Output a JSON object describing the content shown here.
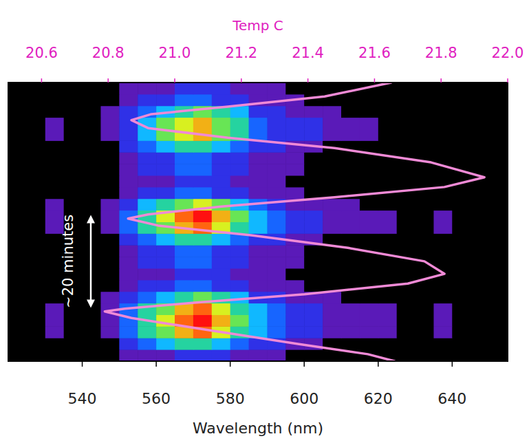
{
  "chart_data": {
    "type": "heatmap",
    "x_label": "Wavelength (nm)",
    "x2_label": "Temp C",
    "xlim": [
      520,
      655
    ],
    "xticks": [
      540,
      560,
      580,
      600,
      620,
      640
    ],
    "x2lim": [
      20.5,
      22.0
    ],
    "x2ticks": [
      20.6,
      20.8,
      {
        "value": 21,
        "label": "21.0"
      },
      21.2,
      21.4,
      21.6,
      21.8,
      {
        "value": 22,
        "label": "22.0"
      }
    ],
    "ylim": [
      0,
      60
    ],
    "tick_labels": "x",
    "grid": false,
    "x_bins": [
      520,
      525,
      530,
      535,
      540,
      545,
      550,
      555,
      560,
      565,
      570,
      575,
      580,
      585,
      590,
      595,
      600,
      605,
      610,
      615,
      620,
      625,
      630,
      635,
      640,
      645,
      650,
      655
    ],
    "y_bins": [
      0,
      2.5,
      5,
      7.5,
      10,
      12.5,
      15,
      17.5,
      20,
      22.5,
      25,
      27.5,
      30,
      32.5,
      35,
      37.5,
      40,
      42.5,
      45,
      47.5,
      50,
      52.5,
      55,
      57.5,
      60
    ],
    "color_range": [
      0,
      10
    ],
    "cells": [
      [
        0,
        0,
        0,
        0,
        0,
        0,
        1,
        1,
        1,
        2,
        2,
        2,
        1,
        1,
        1,
        0,
        0,
        0,
        0,
        0,
        0,
        0,
        0,
        0,
        0,
        0,
        0
      ],
      [
        0,
        0,
        0,
        0,
        0,
        0,
        2,
        3,
        4,
        5,
        5,
        4,
        3,
        2,
        2,
        1,
        1,
        0,
        0,
        0,
        0,
        0,
        0,
        0,
        0,
        0,
        0
      ],
      [
        0,
        0,
        1,
        0,
        0,
        1,
        3,
        5,
        6,
        8,
        9,
        7,
        5,
        4,
        3,
        2,
        2,
        1,
        1,
        1,
        1,
        0,
        0,
        1,
        0,
        0,
        0
      ],
      [
        0,
        0,
        1,
        0,
        0,
        1,
        3,
        5,
        7,
        9,
        10,
        8,
        6,
        4,
        3,
        2,
        2,
        1,
        1,
        1,
        1,
        0,
        0,
        1,
        0,
        0,
        0
      ],
      [
        0,
        0,
        1,
        0,
        0,
        1,
        3,
        5,
        6,
        8,
        9,
        7,
        5,
        4,
        3,
        2,
        2,
        1,
        1,
        1,
        1,
        0,
        0,
        1,
        0,
        0,
        0
      ],
      [
        0,
        0,
        0,
        0,
        0,
        1,
        2,
        3,
        4,
        5,
        6,
        5,
        4,
        2,
        2,
        1,
        1,
        1,
        0,
        0,
        0,
        0,
        0,
        0,
        0,
        0,
        0
      ],
      [
        0,
        0,
        0,
        0,
        0,
        0,
        1,
        2,
        2,
        3,
        3,
        2,
        2,
        1,
        1,
        1,
        0,
        0,
        0,
        0,
        0,
        0,
        0,
        0,
        0,
        0,
        0
      ],
      [
        0,
        0,
        0,
        0,
        0,
        0,
        1,
        1,
        1,
        2,
        2,
        2,
        1,
        1,
        1,
        0,
        0,
        0,
        0,
        0,
        0,
        0,
        0,
        0,
        0,
        0,
        0
      ],
      [
        0,
        0,
        0,
        0,
        0,
        0,
        1,
        2,
        2,
        3,
        3,
        2,
        2,
        1,
        1,
        1,
        0,
        0,
        0,
        0,
        0,
        0,
        0,
        0,
        0,
        0,
        0
      ],
      [
        0,
        0,
        0,
        0,
        0,
        0,
        1,
        2,
        2,
        3,
        3,
        2,
        2,
        1,
        1,
        1,
        0,
        0,
        0,
        0,
        0,
        0,
        0,
        0,
        0,
        0,
        0
      ],
      [
        0,
        0,
        0,
        0,
        0,
        0,
        2,
        3,
        4,
        5,
        5,
        4,
        3,
        2,
        2,
        1,
        1,
        0,
        0,
        0,
        0,
        0,
        0,
        0,
        0,
        0,
        0
      ],
      [
        0,
        0,
        1,
        0,
        0,
        1,
        3,
        5,
        6,
        8,
        9,
        7,
        5,
        4,
        3,
        2,
        2,
        1,
        1,
        1,
        1,
        0,
        0,
        1,
        0,
        0,
        0
      ],
      [
        0,
        0,
        1,
        0,
        0,
        1,
        3,
        5,
        7,
        9,
        10,
        8,
        6,
        4,
        3,
        2,
        2,
        1,
        1,
        1,
        1,
        0,
        0,
        1,
        0,
        0,
        0
      ],
      [
        0,
        0,
        1,
        0,
        0,
        1,
        2,
        4,
        5,
        6,
        7,
        6,
        4,
        3,
        2,
        1,
        1,
        1,
        1,
        0,
        0,
        0,
        0,
        0,
        0,
        0,
        0
      ],
      [
        0,
        0,
        0,
        0,
        0,
        0,
        1,
        2,
        2,
        3,
        3,
        2,
        2,
        1,
        1,
        1,
        0,
        0,
        0,
        0,
        0,
        0,
        0,
        0,
        0,
        0,
        0
      ],
      [
        0,
        0,
        0,
        0,
        0,
        0,
        1,
        1,
        1,
        2,
        2,
        2,
        1,
        1,
        1,
        0,
        0,
        0,
        0,
        0,
        0,
        0,
        0,
        0,
        0,
        0,
        0
      ],
      [
        0,
        0,
        0,
        0,
        0,
        0,
        1,
        2,
        2,
        3,
        3,
        2,
        2,
        1,
        1,
        1,
        0,
        0,
        0,
        0,
        0,
        0,
        0,
        0,
        0,
        0,
        0
      ],
      [
        0,
        0,
        0,
        0,
        0,
        0,
        1,
        2,
        2,
        3,
        3,
        2,
        2,
        1,
        1,
        1,
        0,
        0,
        0,
        0,
        0,
        0,
        0,
        0,
        0,
        0,
        0
      ],
      [
        0,
        0,
        0,
        0,
        0,
        0,
        2,
        3,
        4,
        5,
        5,
        4,
        3,
        2,
        2,
        1,
        1,
        0,
        0,
        0,
        0,
        0,
        0,
        0,
        0,
        0,
        0
      ],
      [
        0,
        0,
        1,
        0,
        0,
        1,
        2,
        4,
        6,
        7,
        8,
        6,
        5,
        3,
        2,
        2,
        2,
        1,
        1,
        1,
        0,
        0,
        0,
        0,
        0,
        0,
        0
      ],
      [
        0,
        0,
        1,
        0,
        0,
        1,
        2,
        4,
        6,
        7,
        8,
        6,
        5,
        3,
        2,
        2,
        2,
        1,
        1,
        1,
        0,
        0,
        0,
        0,
        0,
        0,
        0
      ],
      [
        0,
        0,
        0,
        0,
        0,
        1,
        2,
        3,
        4,
        5,
        6,
        5,
        4,
        2,
        2,
        1,
        1,
        1,
        0,
        0,
        0,
        0,
        0,
        0,
        0,
        0,
        0
      ],
      [
        0,
        0,
        0,
        0,
        0,
        0,
        1,
        2,
        2,
        3,
        3,
        2,
        2,
        1,
        1,
        1,
        0,
        0,
        0,
        0,
        0,
        0,
        0,
        0,
        0,
        0,
        0
      ],
      [
        0,
        0,
        0,
        0,
        0,
        0,
        1,
        1,
        1,
        2,
        2,
        2,
        1,
        1,
        1,
        0,
        0,
        0,
        0,
        0,
        0,
        0,
        0,
        0,
        0,
        0,
        0
      ]
    ],
    "curve": {
      "color": "#f08ad6",
      "axis": "x2",
      "x": [
        21.65,
        21.45,
        21.16,
        20.93,
        20.87,
        20.92,
        21.16,
        21.48,
        21.77,
        21.93,
        21.81,
        21.48,
        21.14,
        20.92,
        20.86,
        20.95,
        21.23,
        21.52,
        21.75,
        21.81,
        21.7,
        21.39,
        21.06,
        20.85,
        20.79,
        20.87,
        21.1,
        21.37,
        21.58,
        21.66
      ],
      "y": [
        60.0,
        57.0,
        54.8,
        53.2,
        51.9,
        50.2,
        48.1,
        45.9,
        42.8,
        39.6,
        37.5,
        35.3,
        33.3,
        31.6,
        30.7,
        29.2,
        27.1,
        24.4,
        21.5,
        18.8,
        16.7,
        14.4,
        12.6,
        11.3,
        10.7,
        9.3,
        6.7,
        3.7,
        1.5,
        0.0
      ]
    },
    "annotation": {
      "text": "~20 minutes",
      "y": [
        11.5,
        31.5
      ]
    }
  }
}
